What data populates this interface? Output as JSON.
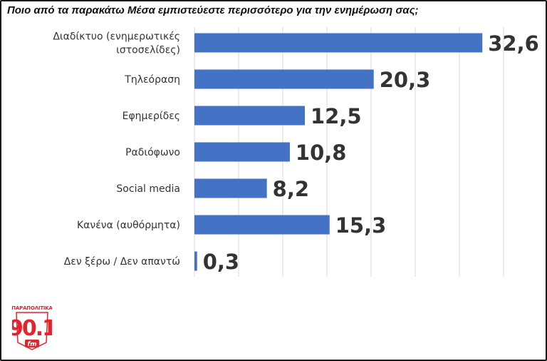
{
  "chart_data": {
    "type": "bar",
    "orientation": "horizontal",
    "title": "Ποιο από τα παρακάτω Μέσα εμπιστεύεστε περισσότερο για την ενημέρωση σας;",
    "categories": [
      [
        "Διαδίκτυο (ενημερωτικές",
        "ιστοσελίδες)"
      ],
      [
        "Τηλεόραση"
      ],
      [
        "Εφημερίδες"
      ],
      [
        "Ραδιόφωνο"
      ],
      [
        "Social media"
      ],
      [
        "Κανένα (αυθόρμητα)"
      ],
      [
        "Δεν ξέρω / Δεν απαντώ"
      ]
    ],
    "values": [
      32.6,
      20.3,
      12.5,
      10.8,
      8.2,
      15.3,
      0.3
    ],
    "value_labels": [
      "32,6",
      "20,3",
      "12,5",
      "10,8",
      "8,2",
      "15,3",
      "0,3"
    ],
    "xlim": [
      0,
      35
    ],
    "grid": true,
    "bar_color": "#4472c4",
    "xlabel": "",
    "ylabel": ""
  },
  "logo": {
    "top_text": "ΠΑΡΑΠΟΛΙΤΙΚΑ",
    "number": "90.1",
    "unit": "fm",
    "color": "#e4232e"
  }
}
